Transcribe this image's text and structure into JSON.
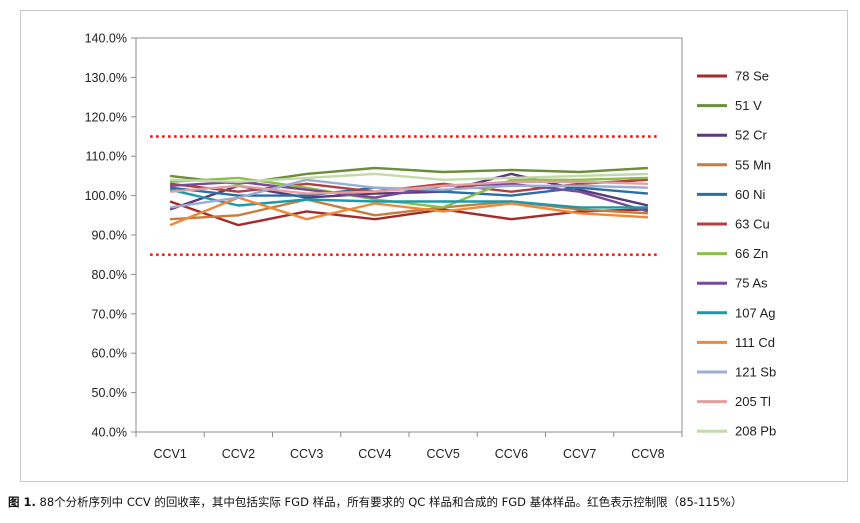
{
  "caption": {
    "figure_no": "图 1.",
    "text": " 88个分析序列中 CCV 的回收率，其中包括实际 FGD 样品，所有要求的 QC 样品和合成的 FGD 基体样品。红色表示控制限（85-115%）"
  },
  "chart_data": {
    "type": "line",
    "categories": [
      "CCV1",
      "CCV2",
      "CCV3",
      "CCV4",
      "CCV5",
      "CCV6",
      "CCV7",
      "CCV8"
    ],
    "ylim": [
      40,
      140
    ],
    "yticks": [
      40,
      50,
      60,
      70,
      80,
      90,
      100,
      110,
      120,
      130,
      140
    ],
    "ytick_labels": [
      "40.0%",
      "50.0%",
      "60.0%",
      "70.0%",
      "80.0%",
      "90.0%",
      "100.0%",
      "110.0%",
      "120.0%",
      "130.0%",
      "140.0%"
    ],
    "grid": false,
    "legend_position": "right",
    "control_limits": {
      "values": [
        85,
        115
      ],
      "color": "#ff0000"
    },
    "series": [
      {
        "name": "78 Se",
        "color": "#a52a2a",
        "values": [
          98.5,
          92.5,
          96.0,
          94.0,
          96.5,
          94.0,
          96.0,
          96.5
        ]
      },
      {
        "name": "51 V",
        "color": "#6b8e3a",
        "values": [
          105.0,
          103.0,
          105.5,
          107.0,
          106.0,
          106.5,
          106.0,
          107.0
        ]
      },
      {
        "name": "52 Cr",
        "color": "#5b3a7a",
        "values": [
          96.5,
          102.5,
          99.5,
          100.5,
          101.0,
          105.5,
          101.5,
          97.5
        ]
      },
      {
        "name": "55 Mn",
        "color": "#c67c3a",
        "values": [
          94.0,
          95.0,
          99.0,
          95.0,
          97.0,
          98.5,
          96.5,
          95.5
        ]
      },
      {
        "name": "60 Ni",
        "color": "#2a6ea6",
        "values": [
          102.0,
          100.0,
          100.0,
          102.0,
          101.0,
          100.0,
          102.0,
          100.5
        ]
      },
      {
        "name": "63 Cu",
        "color": "#b04040",
        "values": [
          103.0,
          101.0,
          103.0,
          101.0,
          103.0,
          101.0,
          103.0,
          104.0
        ]
      },
      {
        "name": "66 Zn",
        "color": "#8abf4a",
        "values": [
          103.5,
          104.5,
          102.0,
          99.0,
          97.0,
          104.0,
          104.0,
          104.5
        ]
      },
      {
        "name": "75 As",
        "color": "#7a4a9a",
        "values": [
          102.5,
          103.5,
          101.5,
          99.5,
          102.5,
          103.0,
          101.0,
          96.0
        ]
      },
      {
        "name": "107 Ag",
        "color": "#1a9aaa",
        "values": [
          101.5,
          97.5,
          99.0,
          98.5,
          98.5,
          98.5,
          97.0,
          97.0
        ]
      },
      {
        "name": "111 Cd",
        "color": "#f0883a",
        "values": [
          92.5,
          99.5,
          94.0,
          98.0,
          96.0,
          98.0,
          95.5,
          94.5
        ]
      },
      {
        "name": "121 Sb",
        "color": "#9aaed4",
        "values": [
          97.0,
          99.5,
          104.0,
          102.0,
          101.5,
          102.5,
          102.5,
          102.0
        ]
      },
      {
        "name": "205 Tl",
        "color": "#e4a0a0",
        "values": [
          101.0,
          102.5,
          100.5,
          101.0,
          102.5,
          103.5,
          103.5,
          103.0
        ]
      },
      {
        "name": "208 Pb",
        "color": "#c4d9a8",
        "values": [
          104.0,
          103.5,
          104.5,
          105.5,
          104.0,
          104.5,
          105.0,
          105.5
        ]
      }
    ]
  }
}
